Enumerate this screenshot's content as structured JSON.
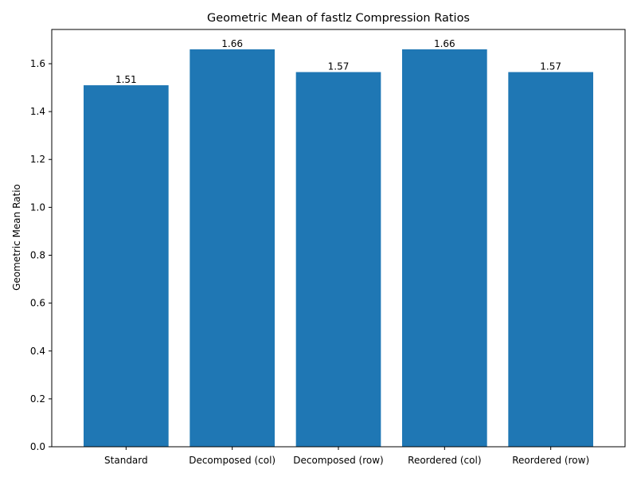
{
  "chart_data": {
    "type": "bar",
    "title": "Geometric Mean of fastlz Compression Ratios",
    "xlabel": "",
    "ylabel": "Geometric Mean Ratio",
    "categories": [
      "Standard",
      "Decomposed (col)",
      "Decomposed (row)",
      "Reordered (col)",
      "Reordered (row)"
    ],
    "values": [
      1.51,
      1.66,
      1.565,
      1.66,
      1.565
    ],
    "value_labels": [
      "1.51",
      "1.66",
      "1.57",
      "1.66",
      "1.57"
    ],
    "ylim": [
      0,
      1.743
    ],
    "yticks": [
      0,
      0.2,
      0.4,
      0.6,
      0.8,
      1.0,
      1.2,
      1.4,
      1.6
    ],
    "ytick_labels": [
      "0.0",
      "0.2",
      "0.4",
      "0.6",
      "0.8",
      "1.0",
      "1.2",
      "1.4",
      "1.6"
    ],
    "bar_color": "#1f77b4",
    "grid": false,
    "legend": "none"
  }
}
